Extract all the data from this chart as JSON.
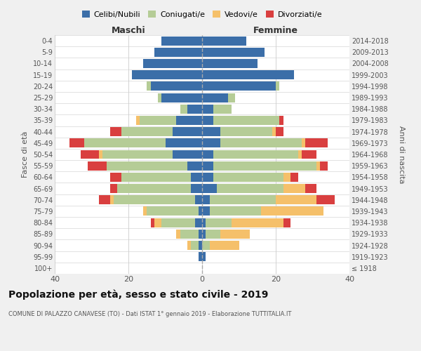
{
  "age_groups": [
    "100+",
    "95-99",
    "90-94",
    "85-89",
    "80-84",
    "75-79",
    "70-74",
    "65-69",
    "60-64",
    "55-59",
    "50-54",
    "45-49",
    "40-44",
    "35-39",
    "30-34",
    "25-29",
    "20-24",
    "15-19",
    "10-14",
    "5-9",
    "0-4"
  ],
  "birth_years": [
    "≤ 1918",
    "1919-1923",
    "1924-1928",
    "1929-1933",
    "1934-1938",
    "1939-1943",
    "1944-1948",
    "1949-1953",
    "1954-1958",
    "1959-1963",
    "1964-1968",
    "1969-1973",
    "1974-1978",
    "1979-1983",
    "1984-1988",
    "1989-1993",
    "1994-1998",
    "1999-2003",
    "2004-2008",
    "2009-2013",
    "2014-2018"
  ],
  "males": {
    "celibi": [
      0,
      1,
      1,
      1,
      2,
      1,
      2,
      3,
      3,
      4,
      8,
      10,
      8,
      7,
      4,
      11,
      14,
      19,
      16,
      13,
      11
    ],
    "coniugati": [
      0,
      0,
      2,
      5,
      9,
      14,
      22,
      20,
      19,
      22,
      19,
      22,
      14,
      10,
      2,
      1,
      1,
      0,
      0,
      0,
      0
    ],
    "vedovi": [
      0,
      0,
      1,
      1,
      2,
      1,
      1,
      0,
      0,
      0,
      1,
      0,
      0,
      1,
      0,
      0,
      0,
      0,
      0,
      0,
      0
    ],
    "divorziati": [
      0,
      0,
      0,
      0,
      1,
      0,
      3,
      2,
      3,
      5,
      5,
      4,
      3,
      0,
      0,
      0,
      0,
      0,
      0,
      0,
      0
    ]
  },
  "females": {
    "nubili": [
      0,
      1,
      0,
      1,
      1,
      2,
      2,
      4,
      3,
      3,
      3,
      5,
      5,
      3,
      3,
      7,
      20,
      25,
      15,
      17,
      12
    ],
    "coniugate": [
      0,
      0,
      2,
      4,
      7,
      14,
      18,
      18,
      19,
      28,
      23,
      22,
      14,
      18,
      5,
      2,
      1,
      0,
      0,
      0,
      0
    ],
    "vedove": [
      0,
      0,
      8,
      8,
      14,
      17,
      11,
      6,
      2,
      1,
      1,
      1,
      1,
      0,
      0,
      0,
      0,
      0,
      0,
      0,
      0
    ],
    "divorziate": [
      0,
      0,
      0,
      0,
      2,
      0,
      5,
      3,
      2,
      2,
      4,
      6,
      2,
      1,
      0,
      0,
      0,
      0,
      0,
      0,
      0
    ]
  },
  "colors": {
    "celibi": "#3B6EA8",
    "coniugati": "#B5CC96",
    "vedovi": "#F5C06A",
    "divorziati": "#D93F3F"
  },
  "title": "Popolazione per età, sesso e stato civile - 2019",
  "subtitle": "COMUNE DI PALAZZO CANAVESE (TO) - Dati ISTAT 1° gennaio 2019 - Elaborazione TUTTITALIA.IT",
  "ylabel_left": "Fasce di età",
  "ylabel_right": "Anni di nascita",
  "xlabel_left": "Maschi",
  "xlabel_right": "Femmine",
  "xlim": 40,
  "bg_color": "#f0f0f0",
  "plot_bg": "#ffffff"
}
